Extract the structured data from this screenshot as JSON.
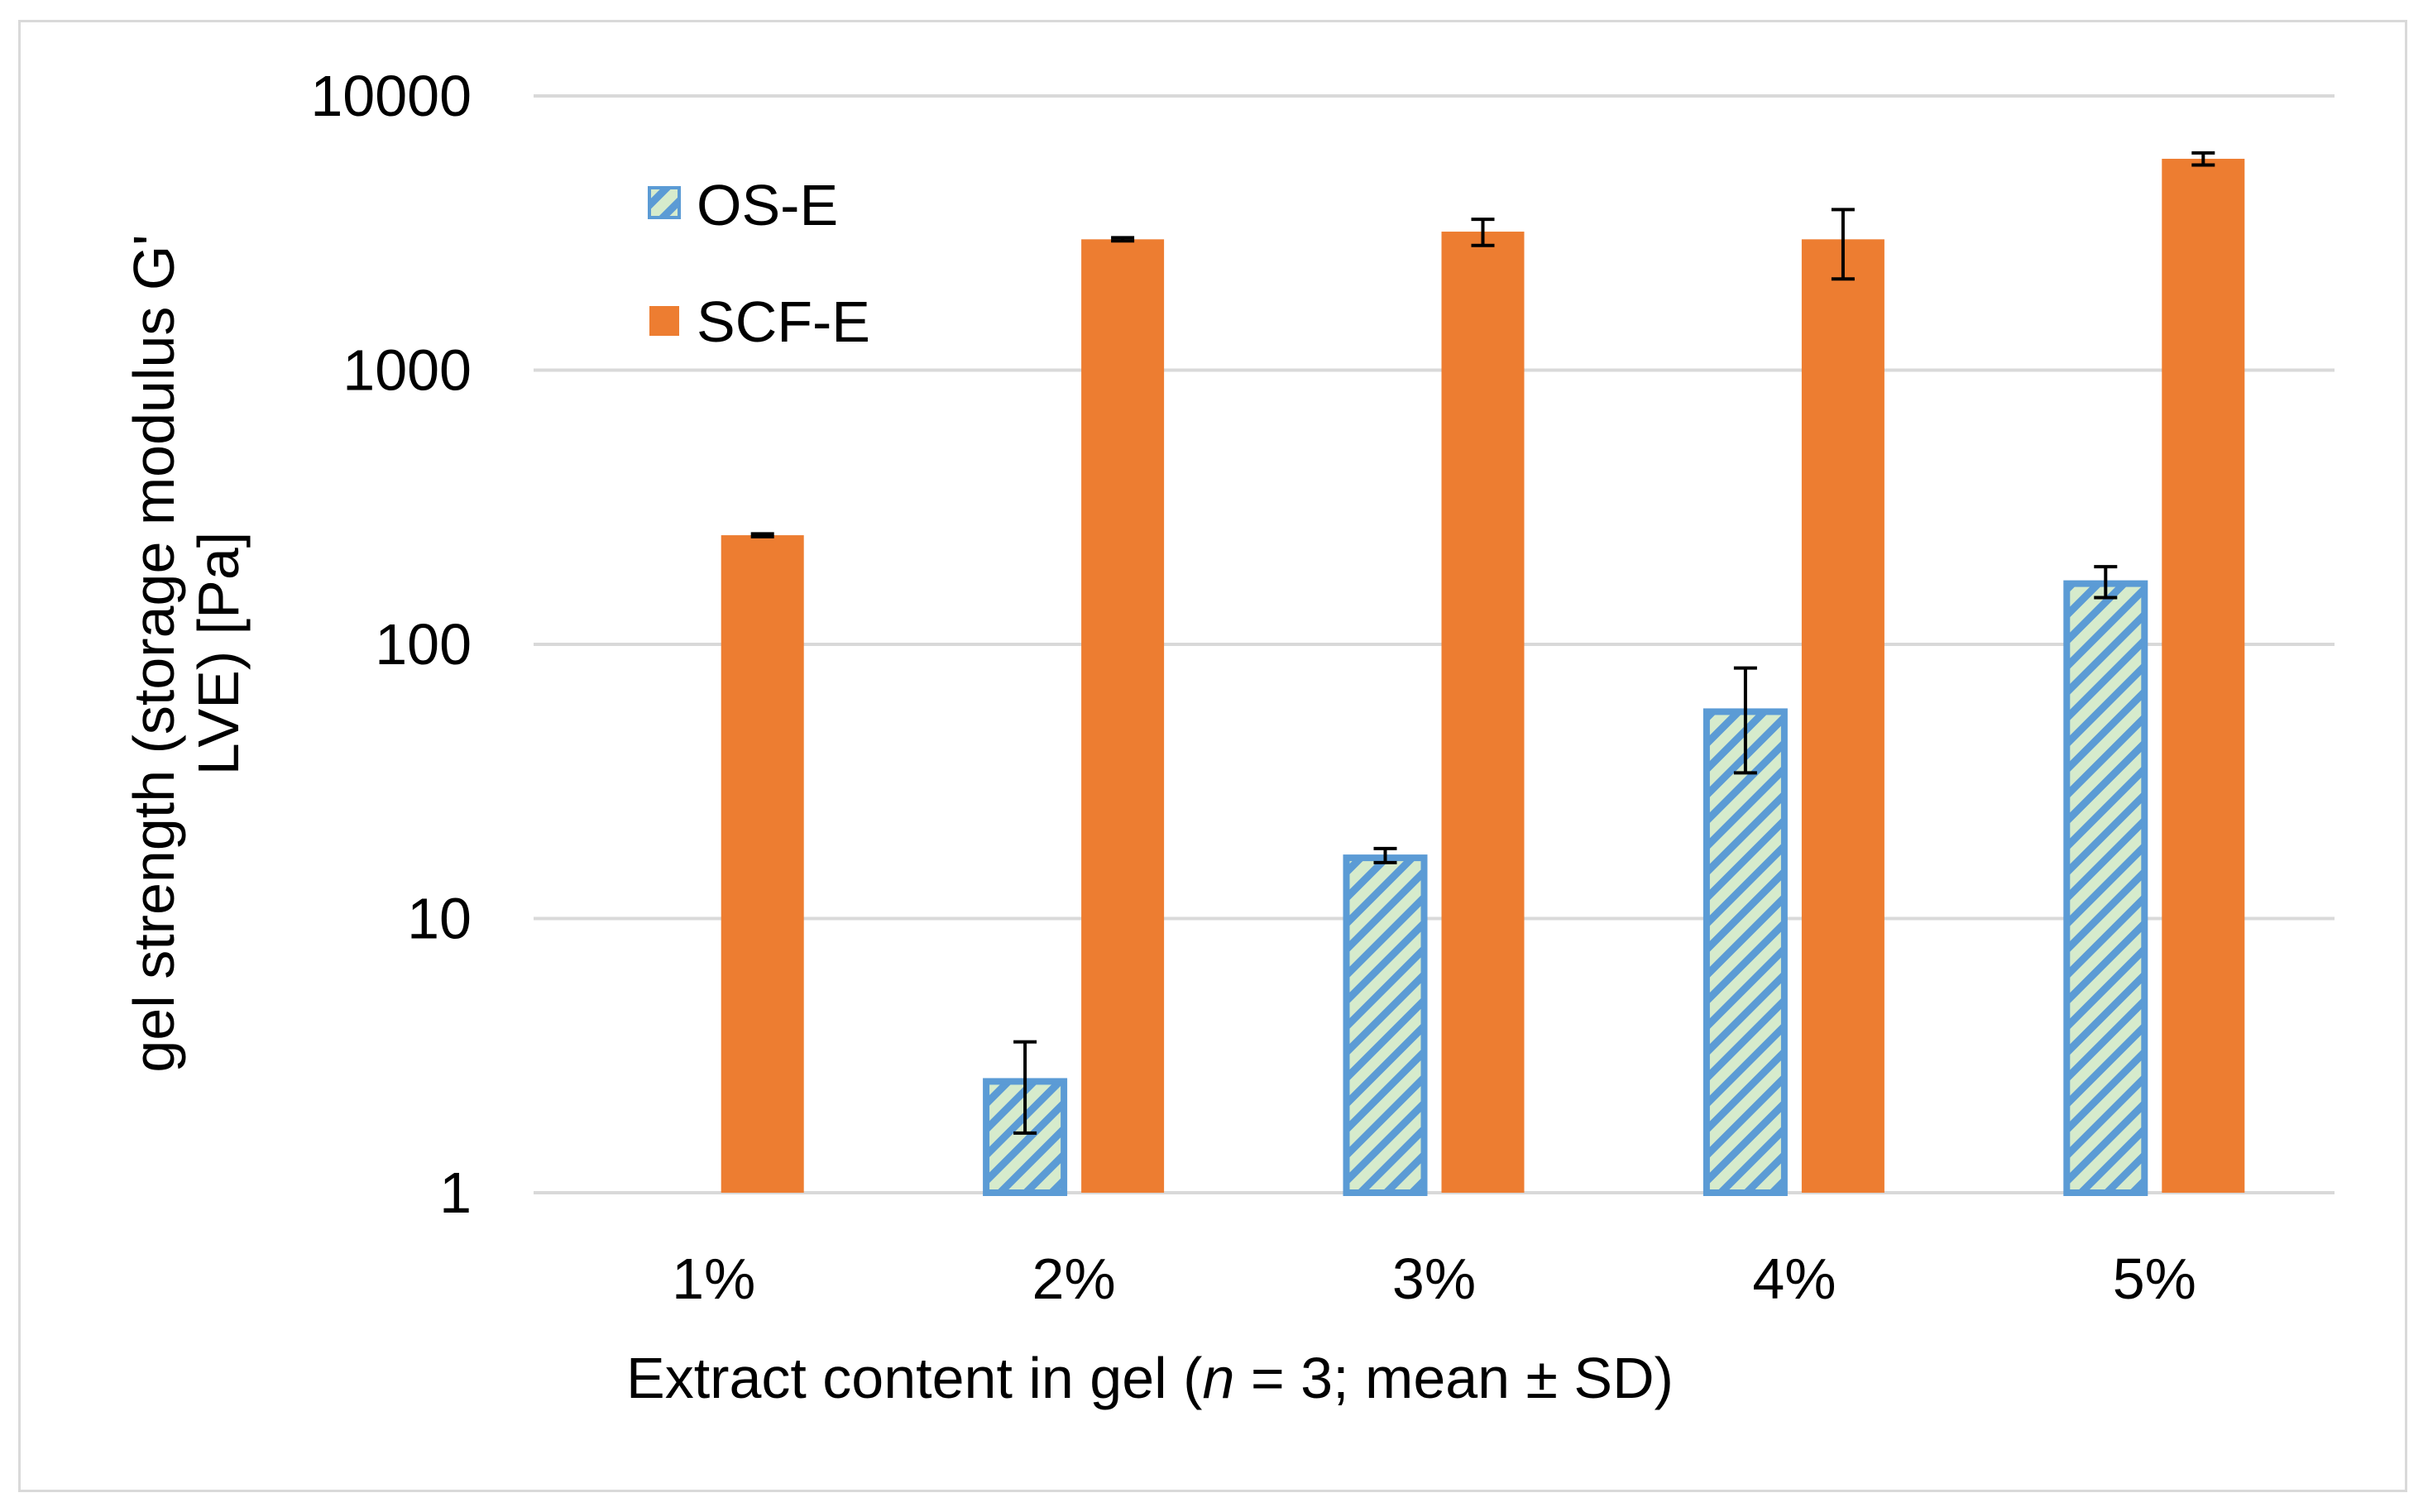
{
  "chart_data": {
    "type": "bar",
    "scale": "log",
    "categories": [
      "1%",
      "2%",
      "3%",
      "4%",
      "5%"
    ],
    "series": [
      {
        "name": "OS-E",
        "values": [
          null,
          2.6,
          17,
          58,
          170
        ],
        "errors": [
          null,
          0.95,
          1.0,
          24,
          22
        ],
        "color": "#5b9bd5",
        "fill": "#d6ebcc"
      },
      {
        "name": "SCF-E",
        "values": [
          250,
          3000,
          3200,
          3000,
          5900
        ],
        "errors": [
          3,
          40,
          350,
          850,
          300
        ],
        "color": "#ed7d31"
      }
    ],
    "yticks": [
      1,
      10,
      100,
      1000,
      10000
    ],
    "ytick_labels": [
      "1",
      "10",
      "100",
      "1000",
      "10000"
    ],
    "ylim": [
      1,
      10000
    ],
    "xlabel_pre": "Extract content in gel (",
    "xlabel_italic": "n",
    "xlabel_post": " = 3; mean ± SD)",
    "ylabel_line1": "gel strength (storage modulus G'",
    "ylabel_line2": "LVE) [Pa]",
    "grid": true,
    "legend": "top-left"
  }
}
